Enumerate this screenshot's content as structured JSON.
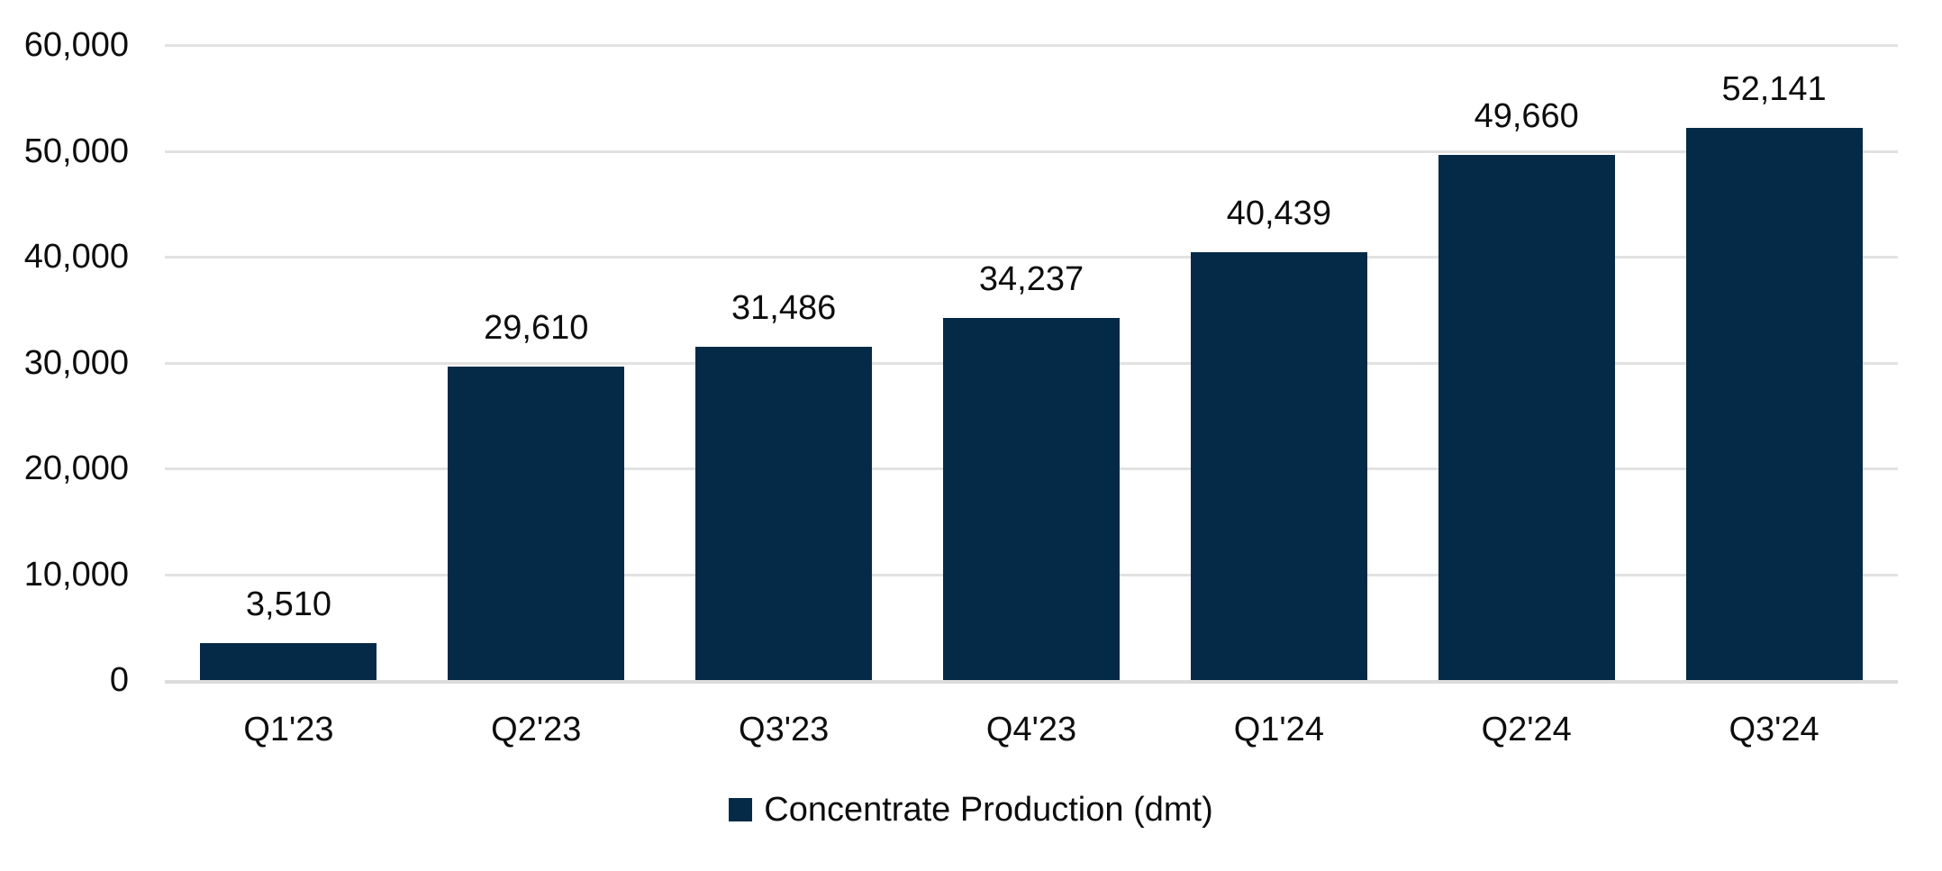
{
  "chart_data": {
    "type": "bar",
    "title": "",
    "xlabel": "",
    "ylabel": "",
    "categories": [
      "Q1'23",
      "Q2'23",
      "Q3'23",
      "Q4'23",
      "Q1'24",
      "Q2'24",
      "Q3'24"
    ],
    "values": [
      3510,
      29610,
      31486,
      34237,
      40439,
      49660,
      52141
    ],
    "value_labels": [
      "3,510",
      "29,610",
      "31,486",
      "34,237",
      "40,439",
      "49,660",
      "52,141"
    ],
    "series_name": "Concentrate Production (dmt)",
    "ylim": [
      0,
      60000
    ],
    "yticks": [
      {
        "value": 0,
        "label": "0"
      },
      {
        "value": 10000,
        "label": "10,000"
      },
      {
        "value": 20000,
        "label": "20,000"
      },
      {
        "value": 30000,
        "label": "30,000"
      },
      {
        "value": 40000,
        "label": "40,000"
      },
      {
        "value": 50000,
        "label": "50,000"
      },
      {
        "value": 60000,
        "label": "60,000"
      }
    ],
    "grid": true,
    "legend_position": "bottom",
    "colors": {
      "bar": "#052A47",
      "gridline": "#E2E2E2",
      "axis_line": "#DCDCDC",
      "text": "#0d0d0d",
      "background": "#FFFFFF"
    }
  }
}
